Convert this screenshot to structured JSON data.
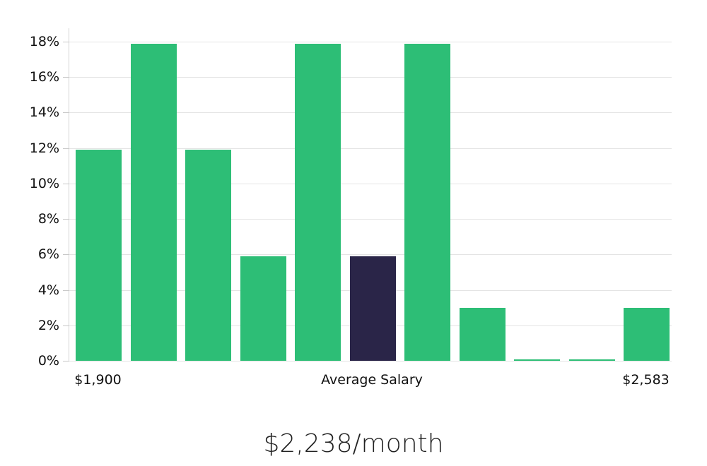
{
  "chart_data": {
    "type": "bar",
    "title": "$2,238/month",
    "xlabel": "",
    "ylabel": "",
    "unit": "%",
    "ylim": [
      0,
      18
    ],
    "ytick_step": 2,
    "ytick_labels": [
      "18%",
      "16%",
      "14%",
      "12%",
      "10%",
      "8%",
      "6%",
      "4%",
      "2%",
      "0%"
    ],
    "grid": "horizontal",
    "legend": "none",
    "values": [
      11.9,
      17.9,
      11.9,
      5.9,
      17.9,
      5.9,
      17.9,
      3.0,
      0.1,
      0.1,
      3.0
    ],
    "highlight_index": 5,
    "highlight_meaning": "Average Salary",
    "x_tick_labels": [
      {
        "text": "$1,900",
        "bar_index": 0
      },
      {
        "text": "Average Salary",
        "bar_index": 5
      },
      {
        "text": "$2,583",
        "bar_index": 10
      }
    ],
    "colors": {
      "bar": "#2dbe76",
      "highlight_bar": "#2a2548",
      "grid": "#e4e4e4",
      "axis": "#d4d4d4",
      "tick_text": "#111111",
      "title_text": "#212121"
    }
  }
}
